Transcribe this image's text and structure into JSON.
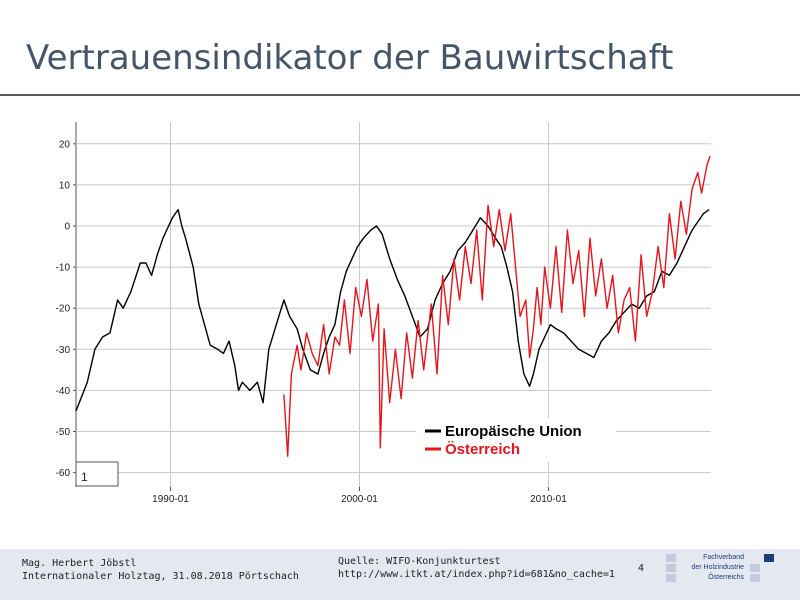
{
  "slide": {
    "title": "Vertrauensindikator der Bauwirtschaft",
    "page_number": "4"
  },
  "footer": {
    "author": "Mag. Herbert Jöbstl",
    "event": "Internationaler Holztag, 31.08.2018 Pörtschach",
    "source_label": "Quelle: WIFO-Konjunkturtest",
    "source_url": "http://www.itkt.at/index.php?id=681&no_cache=1",
    "logo_lines": [
      "Fachverband",
      "der Holzindustrie",
      "Österreichs"
    ],
    "logo_colors": {
      "light": "#c7c9dd",
      "dark": "#1f3b7a"
    }
  },
  "chart_data": {
    "type": "line",
    "x_range": [
      1985.0,
      2018.6
    ],
    "ylim": [
      -62,
      25
    ],
    "y_ticks": [
      20,
      10,
      0,
      -10,
      -20,
      -30,
      -40,
      -50,
      -60
    ],
    "x_ticks": [
      {
        "value": 1990.0,
        "label": "1990-01"
      },
      {
        "value": 2000.0,
        "label": "2000-01"
      },
      {
        "value": 2010.0,
        "label": "2010-01"
      }
    ],
    "grid": true,
    "legend_position": "bottom-right",
    "box_label": "1",
    "series": [
      {
        "name": "Europäische Union",
        "color": "#000000",
        "x": [
          1985.0,
          1985.6,
          1986.0,
          1986.4,
          1986.8,
          1987.2,
          1987.5,
          1987.9,
          1988.4,
          1988.7,
          1989.0,
          1989.3,
          1989.6,
          1989.9,
          1990.1,
          1990.4,
          1990.6,
          1990.8,
          1991.2,
          1991.5,
          1991.8,
          1992.1,
          1992.5,
          1992.8,
          1993.1,
          1993.4,
          1993.6,
          1993.8,
          1994.2,
          1994.6,
          1994.9,
          1995.2,
          1995.6,
          1996.0,
          1996.3,
          1996.7,
          1997.0,
          1997.4,
          1997.8,
          1998.1,
          1998.4,
          1998.7,
          1999.0,
          1999.3,
          1999.6,
          1999.9,
          2000.2,
          2000.6,
          2000.9,
          2001.2,
          2001.6,
          2002.0,
          2002.4,
          2002.8,
          2003.2,
          2003.6,
          2004.0,
          2004.4,
          2004.8,
          2005.2,
          2005.6,
          2006.0,
          2006.4,
          2006.8,
          2007.2,
          2007.5,
          2007.8,
          2008.1,
          2008.4,
          2008.7,
          2009.0,
          2009.2,
          2009.5,
          2009.8,
          2010.1,
          2010.4,
          2010.8,
          2011.2,
          2011.6,
          2012.0,
          2012.4,
          2012.8,
          2013.2,
          2013.6,
          2014.0,
          2014.4,
          2014.8,
          2015.2,
          2015.6,
          2016.0,
          2016.4,
          2016.8,
          2017.2,
          2017.6,
          2017.9,
          2018.2,
          2018.5
        ],
        "y": [
          -45,
          -38,
          -30,
          -27,
          -26,
          -18,
          -20,
          -16,
          -9,
          -9,
          -12,
          -7,
          -3,
          0,
          2,
          4,
          0,
          -3,
          -10,
          -19,
          -24,
          -29,
          -30,
          -31,
          -28,
          -34,
          -40,
          -38,
          -40,
          -38,
          -43,
          -30,
          -24,
          -18,
          -22,
          -25,
          -30,
          -35,
          -36,
          -31,
          -27,
          -24,
          -16,
          -11,
          -8,
          -5,
          -3,
          -1,
          0,
          -2,
          -8,
          -13,
          -17,
          -22,
          -27,
          -25,
          -18,
          -14,
          -11,
          -6,
          -4,
          -1,
          2,
          0,
          -3,
          -5,
          -10,
          -16,
          -28,
          -36,
          -39,
          -36,
          -30,
          -27,
          -24,
          -25,
          -26,
          -28,
          -30,
          -31,
          -32,
          -28,
          -26,
          -23,
          -21,
          -19,
          -20,
          -17,
          -16,
          -11,
          -12,
          -9,
          -5,
          -1,
          1,
          3,
          4
        ]
      },
      {
        "name": "Österreich",
        "color": "#e8141b",
        "x": [
          1996.0,
          1996.2,
          1996.4,
          1996.7,
          1996.9,
          1997.2,
          1997.5,
          1997.8,
          1998.1,
          1998.4,
          1998.7,
          1998.95,
          1999.2,
          1999.5,
          1999.8,
          2000.1,
          2000.4,
          2000.7,
          2001.0,
          2001.1,
          2001.3,
          2001.6,
          2001.9,
          2002.2,
          2002.5,
          2002.8,
          2003.1,
          2003.4,
          2003.8,
          2004.1,
          2004.4,
          2004.7,
          2005.0,
          2005.3,
          2005.6,
          2005.9,
          2006.2,
          2006.5,
          2006.8,
          2007.1,
          2007.4,
          2007.7,
          2008.0,
          2008.3,
          2008.5,
          2008.8,
          2009.0,
          2009.2,
          2009.4,
          2009.6,
          2009.8,
          2010.1,
          2010.4,
          2010.7,
          2011.0,
          2011.3,
          2011.6,
          2011.9,
          2012.2,
          2012.5,
          2012.8,
          2013.1,
          2013.4,
          2013.7,
          2014.0,
          2014.3,
          2014.6,
          2014.9,
          2015.2,
          2015.5,
          2015.8,
          2016.1,
          2016.4,
          2016.7,
          2017.0,
          2017.3,
          2017.6,
          2017.9,
          2018.1,
          2018.4,
          2018.55
        ],
        "y": [
          -41,
          -56,
          -36,
          -29,
          -35,
          -26,
          -31,
          -34,
          -24,
          -36,
          -27,
          -29,
          -18,
          -31,
          -15,
          -22,
          -13,
          -28,
          -19,
          -54,
          -25,
          -43,
          -30,
          -42,
          -26,
          -37,
          -23,
          -35,
          -19,
          -36,
          -12,
          -24,
          -8,
          -18,
          -5,
          -14,
          -1,
          -18,
          5,
          -5,
          4,
          -6,
          3,
          -12,
          -22,
          -18,
          -32,
          -25,
          -15,
          -24,
          -10,
          -20,
          -5,
          -21,
          -1,
          -14,
          -6,
          -22,
          -3,
          -17,
          -8,
          -20,
          -12,
          -26,
          -18,
          -15,
          -28,
          -7,
          -22,
          -16,
          -5,
          -15,
          3,
          -8,
          6,
          -2,
          9,
          13,
          8,
          15,
          17
        ]
      }
    ]
  }
}
